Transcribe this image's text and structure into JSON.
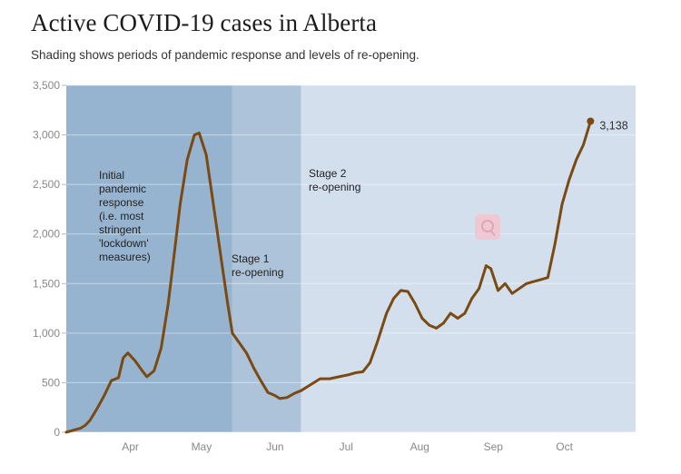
{
  "title": "Active COVID-19 cases in Alberta",
  "subtitle": "Shading shows periods of pandemic response and levels of re-opening.",
  "chart_data": {
    "type": "line",
    "title": "Active COVID-19 cases in Alberta",
    "subtitle": "Shading shows periods of pandemic response and levels of re-opening.",
    "ylim": [
      0,
      3500
    ],
    "yticks": [
      {
        "value": 0,
        "label": "0"
      },
      {
        "value": 500,
        "label": "500"
      },
      {
        "value": 1000,
        "label": "1,000"
      },
      {
        "value": 1500,
        "label": "1,500"
      },
      {
        "value": 2000,
        "label": "2,000"
      },
      {
        "value": 2500,
        "label": "2,500"
      },
      {
        "value": 3000,
        "label": "3,000"
      },
      {
        "value": 3500,
        "label": "3,500"
      }
    ],
    "xlim": [
      "2020-03-05",
      "2020-10-31"
    ],
    "xticks": [
      {
        "date": "2020-04-01",
        "label": "Apr"
      },
      {
        "date": "2020-05-01",
        "label": "May"
      },
      {
        "date": "2020-06-01",
        "label": "Jun"
      },
      {
        "date": "2020-07-01",
        "label": "Jul"
      },
      {
        "date": "2020-08-01",
        "label": "Aug"
      },
      {
        "date": "2020-09-01",
        "label": "Sep"
      },
      {
        "date": "2020-10-01",
        "label": "Oct"
      }
    ],
    "bands": [
      {
        "start": "2020-03-05",
        "end": "2020-05-14",
        "color": "#96b4cf",
        "label": "Initial\npandemic\nresponse\n(i.e. most\nstringent\n'lockdown'\nmeasures)"
      },
      {
        "start": "2020-05-14",
        "end": "2020-06-12",
        "color": "#adc3da",
        "label": "Stage 1\nre-opening"
      },
      {
        "start": "2020-06-12",
        "end": "2020-10-31",
        "color": "#d3dfed",
        "label": "Stage 2\nre-opening"
      }
    ],
    "grid": true,
    "end_label": "3,138",
    "series": [
      {
        "color": "#7b4a12",
        "points": [
          [
            "2020-03-05",
            0
          ],
          [
            "2020-03-08",
            20
          ],
          [
            "2020-03-11",
            40
          ],
          [
            "2020-03-13",
            70
          ],
          [
            "2020-03-15",
            120
          ],
          [
            "2020-03-18",
            240
          ],
          [
            "2020-03-21",
            370
          ],
          [
            "2020-03-24",
            520
          ],
          [
            "2020-03-27",
            550
          ],
          [
            "2020-03-29",
            750
          ],
          [
            "2020-03-31",
            800
          ],
          [
            "2020-04-03",
            720
          ],
          [
            "2020-04-06",
            620
          ],
          [
            "2020-04-08",
            560
          ],
          [
            "2020-04-11",
            620
          ],
          [
            "2020-04-14",
            850
          ],
          [
            "2020-04-17",
            1300
          ],
          [
            "2020-04-19",
            1700
          ],
          [
            "2020-04-22",
            2300
          ],
          [
            "2020-04-25",
            2750
          ],
          [
            "2020-04-28",
            3000
          ],
          [
            "2020-04-30",
            3020
          ],
          [
            "2020-05-03",
            2800
          ],
          [
            "2020-05-06",
            2300
          ],
          [
            "2020-05-09",
            1800
          ],
          [
            "2020-05-12",
            1300
          ],
          [
            "2020-05-14",
            1000
          ],
          [
            "2020-05-17",
            900
          ],
          [
            "2020-05-20",
            800
          ],
          [
            "2020-05-23",
            650
          ],
          [
            "2020-05-26",
            520
          ],
          [
            "2020-05-29",
            400
          ],
          [
            "2020-06-01",
            370
          ],
          [
            "2020-06-03",
            340
          ],
          [
            "2020-06-06",
            350
          ],
          [
            "2020-06-09",
            390
          ],
          [
            "2020-06-12",
            420
          ],
          [
            "2020-06-16",
            480
          ],
          [
            "2020-06-20",
            540
          ],
          [
            "2020-06-24",
            540
          ],
          [
            "2020-06-28",
            560
          ],
          [
            "2020-07-02",
            580
          ],
          [
            "2020-07-05",
            600
          ],
          [
            "2020-07-08",
            610
          ],
          [
            "2020-07-11",
            700
          ],
          [
            "2020-07-14",
            900
          ],
          [
            "2020-07-18",
            1200
          ],
          [
            "2020-07-21",
            1350
          ],
          [
            "2020-07-24",
            1430
          ],
          [
            "2020-07-27",
            1420
          ],
          [
            "2020-07-30",
            1300
          ],
          [
            "2020-08-02",
            1150
          ],
          [
            "2020-08-05",
            1080
          ],
          [
            "2020-08-08",
            1050
          ],
          [
            "2020-08-11",
            1100
          ],
          [
            "2020-08-14",
            1200
          ],
          [
            "2020-08-17",
            1150
          ],
          [
            "2020-08-20",
            1200
          ],
          [
            "2020-08-23",
            1350
          ],
          [
            "2020-08-26",
            1450
          ],
          [
            "2020-08-29",
            1680
          ],
          [
            "2020-08-31",
            1650
          ],
          [
            "2020-09-03",
            1430
          ],
          [
            "2020-09-06",
            1500
          ],
          [
            "2020-09-09",
            1400
          ],
          [
            "2020-09-12",
            1450
          ],
          [
            "2020-09-15",
            1500
          ],
          [
            "2020-09-18",
            1520
          ],
          [
            "2020-09-21",
            1540
          ],
          [
            "2020-09-24",
            1560
          ],
          [
            "2020-09-27",
            1900
          ],
          [
            "2020-09-30",
            2300
          ],
          [
            "2020-10-03",
            2550
          ],
          [
            "2020-10-06",
            2750
          ],
          [
            "2020-10-09",
            2900
          ],
          [
            "2020-10-12",
            3138
          ]
        ]
      }
    ]
  }
}
